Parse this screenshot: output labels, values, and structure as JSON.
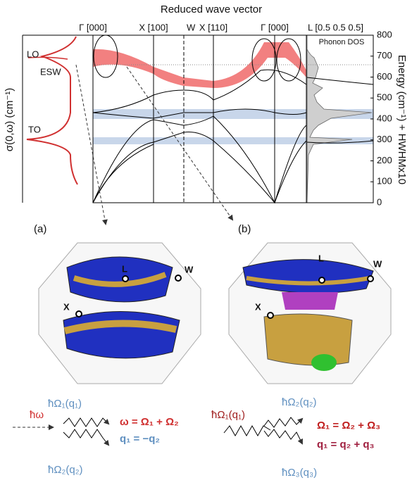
{
  "figure": {
    "dispersion": {
      "title": "Reduced wave vector",
      "qpoints": [
        "Γ [000]",
        "X [100]",
        "W",
        "X [110]",
        "Γ [000]",
        "L [0.5 0.5 0.5]"
      ],
      "dos_label": "Phonon DOS",
      "y_label": "Energy (cm⁻¹) + HWHMx10",
      "ylim": [
        0,
        800
      ],
      "yticks": [
        0,
        100,
        200,
        300,
        400,
        500,
        600,
        700,
        800
      ]
    },
    "conductivity": {
      "y_label": "σ(0,ω) (cm⁻¹)",
      "labels": [
        "LO",
        "ESW",
        "TO"
      ]
    },
    "panels": [
      {
        "tag": "(a)",
        "points": [
          "L",
          "W",
          "X"
        ],
        "process": [
          "ħω",
          "ħΩ₁(q₁)",
          "ħΩ₂(q₂)"
        ],
        "equations": [
          "ω = Ω₁ + Ω₂",
          "q₁ = −q₂"
        ]
      },
      {
        "tag": "(b)",
        "points": [
          "L",
          "W",
          "X"
        ],
        "process": [
          "ħΩ₁(q₁)",
          "ħΩ₂(q₂)",
          "ħΩ₃(q₃)"
        ],
        "equations": [
          "Ω₁ = Ω₂ + Ω₃",
          "q₁ = q₂ + q₃"
        ]
      }
    ]
  }
}
